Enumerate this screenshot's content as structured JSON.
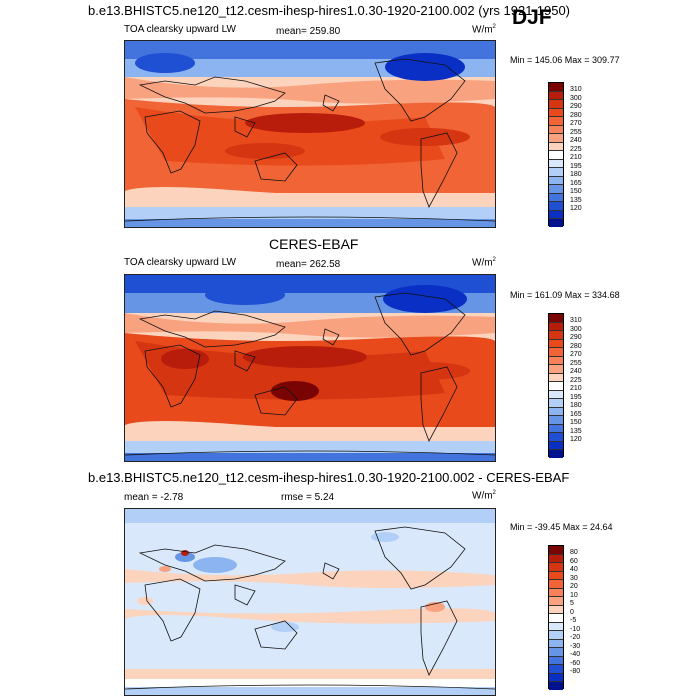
{
  "header": {
    "title": "b.e13.BHISTC5.ne120_t12.cesm-ihesp-hires1.0.30-1920-2100.002 (yrs 1921-1950)",
    "season": "DJF"
  },
  "panels": [
    {
      "id": "model",
      "title": "",
      "variable": "TOA clearsky upward LW",
      "mean": "mean= 259.80",
      "rmse": "",
      "units": "W/m",
      "units_sup": "2",
      "minmax": "Min = 145.06 Max = 309.77",
      "levels": [
        "310",
        "300",
        "290",
        "280",
        "270",
        "255",
        "240",
        "225",
        "210",
        "195",
        "180",
        "165",
        "150",
        "135",
        "120"
      ],
      "colors": [
        "#7a0403",
        "#b81d0b",
        "#d63511",
        "#e84a1c",
        "#f06436",
        "#f5825a",
        "#f9a27f",
        "#fcd3bd",
        "#ffffff",
        "#d9e9fb",
        "#b2d0f7",
        "#8cb4f0",
        "#6795e6",
        "#4374dd",
        "#1f4fd3",
        "#0a2fc4",
        "#00118f"
      ]
    },
    {
      "id": "obs",
      "title": "CERES-EBAF",
      "variable": "TOA clearsky upward LW",
      "mean": "mean= 262.58",
      "rmse": "",
      "units": "W/m",
      "units_sup": "2",
      "minmax": "Min = 161.09 Max = 334.68",
      "levels": [
        "310",
        "300",
        "290",
        "280",
        "270",
        "255",
        "240",
        "225",
        "210",
        "195",
        "180",
        "165",
        "150",
        "135",
        "120"
      ],
      "colors": [
        "#7a0403",
        "#b81d0b",
        "#d63511",
        "#e84a1c",
        "#f06436",
        "#f5825a",
        "#f9a27f",
        "#fcd3bd",
        "#ffffff",
        "#d9e9fb",
        "#b2d0f7",
        "#8cb4f0",
        "#6795e6",
        "#4374dd",
        "#1f4fd3",
        "#0a2fc4",
        "#00118f"
      ]
    },
    {
      "id": "diff",
      "title": "b.e13.BHISTC5.ne120_t12.cesm-ihesp-hires1.0.30-1920-2100.002 - CERES-EBAF",
      "variable": "",
      "mean": "mean =  -2.78",
      "rmse": "rmse =   5.24",
      "units": "W/m",
      "units_sup": "2",
      "minmax": "Min = -39.45 Max =  24.64",
      "levels": [
        "80",
        "60",
        "40",
        "30",
        "20",
        "10",
        "5",
        "0",
        "-5",
        "-10",
        "-20",
        "-30",
        "-40",
        "-60",
        "-80"
      ],
      "colors": [
        "#7a0403",
        "#b81d0b",
        "#d63511",
        "#e84a1c",
        "#f06436",
        "#f5825a",
        "#f9a27f",
        "#fcd3bd",
        "#ffffff",
        "#d9e9fb",
        "#b2d0f7",
        "#8cb4f0",
        "#6795e6",
        "#4374dd",
        "#1f4fd3",
        "#0a2fc4",
        "#00118f"
      ]
    }
  ]
}
